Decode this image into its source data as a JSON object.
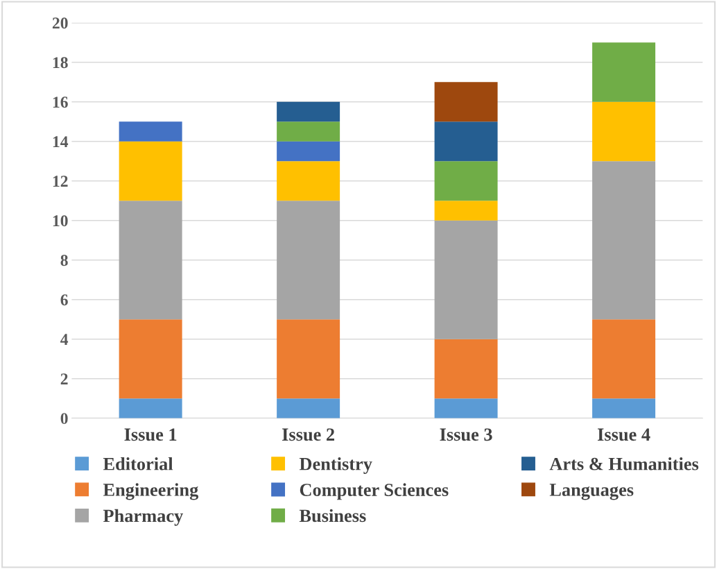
{
  "chart_data": {
    "type": "bar",
    "stacked": true,
    "categories": [
      "Issue 1",
      "Issue 2",
      "Issue 3",
      "Issue 4"
    ],
    "series": [
      {
        "name": "Editorial",
        "color": "#5b9bd5",
        "values": [
          1,
          1,
          1,
          1
        ]
      },
      {
        "name": "Engineering",
        "color": "#ed7d31",
        "values": [
          4,
          4,
          3,
          4
        ]
      },
      {
        "name": "Pharmacy",
        "color": "#a5a5a5",
        "values": [
          6,
          6,
          6,
          8
        ]
      },
      {
        "name": "Dentistry",
        "color": "#ffc000",
        "values": [
          3,
          2,
          1,
          3
        ]
      },
      {
        "name": "Computer Sciences",
        "color": "#4472c4",
        "values": [
          1,
          1,
          0,
          0
        ]
      },
      {
        "name": "Business",
        "color": "#70ad47",
        "values": [
          0,
          1,
          2,
          3
        ]
      },
      {
        "name": "Arts & Humanities",
        "color": "#255e91",
        "values": [
          0,
          1,
          2,
          0
        ]
      },
      {
        "name": "Languages",
        "color": "#9e480e",
        "values": [
          0,
          0,
          2,
          0
        ]
      }
    ],
    "ylim": [
      0,
      20
    ],
    "yticks": [
      0,
      2,
      4,
      6,
      8,
      10,
      12,
      14,
      16,
      18,
      20
    ],
    "grid": "y",
    "legend": "bottom"
  }
}
